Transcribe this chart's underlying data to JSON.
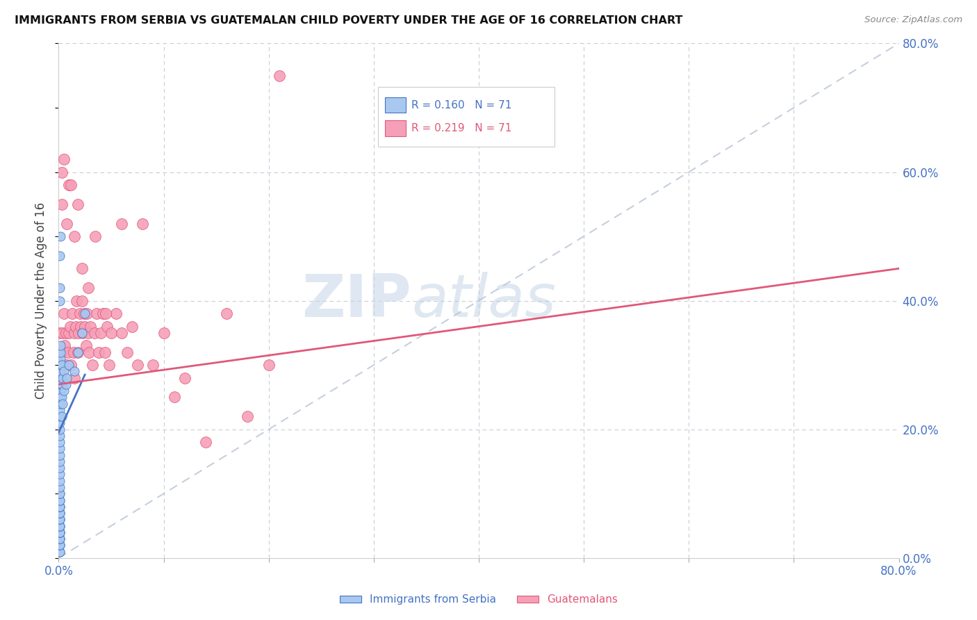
{
  "title": "IMMIGRANTS FROM SERBIA VS GUATEMALAN CHILD POVERTY UNDER THE AGE OF 16 CORRELATION CHART",
  "source": "Source: ZipAtlas.com",
  "ylabel": "Child Poverty Under the Age of 16",
  "xlim": [
    0.0,
    0.8
  ],
  "ylim": [
    0.0,
    0.8
  ],
  "series1_color": "#a8c8f0",
  "series2_color": "#f5a0b8",
  "line1_color": "#4472c4",
  "line2_color": "#e05878",
  "ref_line_color": "#b8c4d4",
  "legend_r1": "R = 0.160",
  "legend_n1": "N = 71",
  "legend_r2": "R = 0.219",
  "legend_n2": "N = 71",
  "legend_label1": "Immigrants from Serbia",
  "legend_label2": "Guatemalans",
  "watermark_zip": "ZIP",
  "watermark_atlas": "atlas",
  "serbia_x": [
    0.001,
    0.001,
    0.001,
    0.001,
    0.001,
    0.001,
    0.001,
    0.001,
    0.001,
    0.001,
    0.001,
    0.001,
    0.001,
    0.001,
    0.001,
    0.001,
    0.001,
    0.001,
    0.001,
    0.001,
    0.001,
    0.001,
    0.001,
    0.001,
    0.001,
    0.001,
    0.001,
    0.001,
    0.001,
    0.001,
    0.001,
    0.001,
    0.001,
    0.001,
    0.001,
    0.001,
    0.001,
    0.001,
    0.001,
    0.001,
    0.001,
    0.002,
    0.002,
    0.002,
    0.002,
    0.002,
    0.002,
    0.002,
    0.002,
    0.002,
    0.002,
    0.002,
    0.003,
    0.003,
    0.003,
    0.003,
    0.004,
    0.004,
    0.005,
    0.005,
    0.007,
    0.008,
    0.01,
    0.015,
    0.018,
    0.022,
    0.025,
    0.001,
    0.001,
    0.001,
    0.002
  ],
  "serbia_y": [
    0.01,
    0.01,
    0.02,
    0.02,
    0.02,
    0.03,
    0.03,
    0.03,
    0.04,
    0.04,
    0.04,
    0.04,
    0.05,
    0.05,
    0.05,
    0.06,
    0.06,
    0.06,
    0.07,
    0.07,
    0.07,
    0.08,
    0.08,
    0.08,
    0.09,
    0.09,
    0.1,
    0.1,
    0.11,
    0.12,
    0.13,
    0.14,
    0.15,
    0.16,
    0.17,
    0.18,
    0.19,
    0.2,
    0.21,
    0.22,
    0.23,
    0.24,
    0.25,
    0.26,
    0.27,
    0.27,
    0.28,
    0.29,
    0.3,
    0.31,
    0.32,
    0.33,
    0.22,
    0.25,
    0.27,
    0.3,
    0.24,
    0.28,
    0.26,
    0.29,
    0.27,
    0.28,
    0.3,
    0.29,
    0.32,
    0.35,
    0.38,
    0.4,
    0.42,
    0.47,
    0.5
  ],
  "guatemala_x": [
    0.001,
    0.001,
    0.002,
    0.003,
    0.003,
    0.004,
    0.005,
    0.005,
    0.006,
    0.007,
    0.008,
    0.009,
    0.01,
    0.01,
    0.011,
    0.012,
    0.013,
    0.014,
    0.015,
    0.015,
    0.016,
    0.017,
    0.018,
    0.019,
    0.02,
    0.021,
    0.022,
    0.023,
    0.024,
    0.025,
    0.026,
    0.027,
    0.028,
    0.029,
    0.03,
    0.032,
    0.034,
    0.036,
    0.038,
    0.04,
    0.042,
    0.044,
    0.046,
    0.048,
    0.05,
    0.055,
    0.06,
    0.065,
    0.07,
    0.075,
    0.08,
    0.09,
    0.1,
    0.11,
    0.12,
    0.14,
    0.16,
    0.18,
    0.003,
    0.005,
    0.008,
    0.012,
    0.015,
    0.018,
    0.022,
    0.028,
    0.035,
    0.045,
    0.06,
    0.2,
    0.21
  ],
  "guatemala_y": [
    0.28,
    0.35,
    0.3,
    0.32,
    0.6,
    0.35,
    0.38,
    0.3,
    0.33,
    0.35,
    0.3,
    0.32,
    0.35,
    0.58,
    0.36,
    0.3,
    0.38,
    0.32,
    0.35,
    0.28,
    0.36,
    0.4,
    0.32,
    0.35,
    0.38,
    0.36,
    0.4,
    0.35,
    0.38,
    0.36,
    0.33,
    0.38,
    0.35,
    0.32,
    0.36,
    0.3,
    0.35,
    0.38,
    0.32,
    0.35,
    0.38,
    0.32,
    0.36,
    0.3,
    0.35,
    0.38,
    0.35,
    0.32,
    0.36,
    0.3,
    0.52,
    0.3,
    0.35,
    0.25,
    0.28,
    0.18,
    0.38,
    0.22,
    0.55,
    0.62,
    0.52,
    0.58,
    0.5,
    0.55,
    0.45,
    0.42,
    0.5,
    0.38,
    0.52,
    0.3,
    0.75
  ],
  "blue_line_x0": 0.0,
  "blue_line_y0": 0.195,
  "blue_line_x1": 0.025,
  "blue_line_y1": 0.285,
  "pink_line_x0": 0.0,
  "pink_line_y0": 0.27,
  "pink_line_x1": 0.8,
  "pink_line_y1": 0.45
}
